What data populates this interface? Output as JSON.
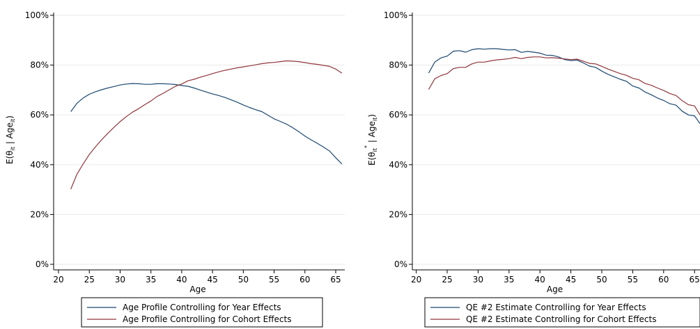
{
  "chart_data": [
    {
      "type": "line",
      "xlabel": "Age",
      "ylabel_main": "E(θ",
      "ylabel_sub1": "it",
      "ylabel_sup": "",
      "ylabel_mid": " | Age",
      "ylabel_sub2": "it",
      "ylabel_end": ")",
      "xlim": [
        20,
        66
      ],
      "ylim": [
        0,
        1
      ],
      "xticks": [
        "20",
        "25",
        "30",
        "35",
        "40",
        "45",
        "50",
        "55",
        "60",
        "65"
      ],
      "yticks": [
        "0%",
        "20%",
        "40%",
        "60%",
        "80%",
        "100%"
      ],
      "grid": true,
      "legend_position": "bottom",
      "series": [
        {
          "name": "Age Profile Controlling for Year Effects",
          "color": "#1a476f",
          "x": [
            22,
            23,
            24,
            25,
            26,
            27,
            28,
            29,
            30,
            31,
            32,
            33,
            34,
            35,
            36,
            37,
            38,
            39,
            40,
            41,
            42,
            43,
            44,
            45,
            46,
            47,
            48,
            49,
            50,
            51,
            52,
            53,
            54,
            55,
            56,
            57,
            58,
            59,
            60,
            61,
            62,
            63,
            64,
            65,
            66
          ],
          "y": [
            0.613,
            0.647,
            0.668,
            0.683,
            0.693,
            0.701,
            0.708,
            0.714,
            0.72,
            0.724,
            0.726,
            0.725,
            0.723,
            0.723,
            0.725,
            0.725,
            0.724,
            0.722,
            0.718,
            0.715,
            0.708,
            0.7,
            0.692,
            0.684,
            0.678,
            0.67,
            0.661,
            0.651,
            0.64,
            0.63,
            0.621,
            0.613,
            0.599,
            0.584,
            0.574,
            0.563,
            0.549,
            0.533,
            0.515,
            0.5,
            0.486,
            0.471,
            0.455,
            0.428,
            0.403
          ]
        },
        {
          "name": "Age Profile Controlling for Cohort Effects",
          "color": "#90353b",
          "x": [
            22,
            23,
            24,
            25,
            26,
            27,
            28,
            29,
            30,
            31,
            32,
            33,
            34,
            35,
            36,
            37,
            38,
            39,
            40,
            41,
            42,
            43,
            44,
            45,
            46,
            47,
            48,
            49,
            50,
            51,
            52,
            53,
            54,
            55,
            56,
            57,
            58,
            59,
            60,
            61,
            62,
            63,
            64,
            65,
            66
          ],
          "y": [
            0.302,
            0.362,
            0.403,
            0.441,
            0.472,
            0.5,
            0.526,
            0.55,
            0.573,
            0.593,
            0.611,
            0.625,
            0.641,
            0.656,
            0.674,
            0.687,
            0.701,
            0.715,
            0.724,
            0.737,
            0.743,
            0.751,
            0.758,
            0.766,
            0.773,
            0.779,
            0.784,
            0.789,
            0.793,
            0.797,
            0.801,
            0.806,
            0.809,
            0.811,
            0.814,
            0.817,
            0.816,
            0.814,
            0.81,
            0.806,
            0.803,
            0.799,
            0.795,
            0.784,
            0.768
          ]
        }
      ]
    },
    {
      "type": "line",
      "xlabel": "Age",
      "ylabel_main": "E(θ",
      "ylabel_sub1": "it",
      "ylabel_sup": "*",
      "ylabel_mid": " | Age",
      "ylabel_sub2": "it",
      "ylabel_end": ")",
      "xlim": [
        20,
        66
      ],
      "ylim": [
        0,
        1
      ],
      "xticks": [
        "20",
        "25",
        "30",
        "35",
        "40",
        "45",
        "50",
        "55",
        "60",
        "65"
      ],
      "yticks": [
        "0%",
        "20%",
        "40%",
        "60%",
        "80%",
        "100%"
      ],
      "grid": true,
      "legend_position": "bottom",
      "series": [
        {
          "name": "QE #2 Estimate Controlling for Year Effects",
          "color": "#1a476f",
          "x": [
            22,
            23,
            24,
            25,
            26,
            27,
            28,
            29,
            30,
            31,
            32,
            33,
            34,
            35,
            36,
            37,
            38,
            39,
            40,
            41,
            42,
            43,
            44,
            45,
            46,
            47,
            48,
            49,
            50,
            51,
            52,
            53,
            54,
            55,
            56,
            57,
            58,
            59,
            60,
            61,
            62,
            63,
            64,
            65,
            66
          ],
          "y": [
            0.768,
            0.812,
            0.829,
            0.836,
            0.856,
            0.858,
            0.852,
            0.862,
            0.866,
            0.864,
            0.866,
            0.866,
            0.863,
            0.861,
            0.862,
            0.851,
            0.855,
            0.852,
            0.848,
            0.84,
            0.839,
            0.833,
            0.822,
            0.818,
            0.82,
            0.809,
            0.796,
            0.791,
            0.776,
            0.763,
            0.753,
            0.743,
            0.735,
            0.716,
            0.708,
            0.692,
            0.681,
            0.668,
            0.658,
            0.645,
            0.639,
            0.615,
            0.6,
            0.596,
            0.565
          ]
        },
        {
          "name": "QE #2 Estimate Controlling for Cohort Effects",
          "color": "#90353b",
          "x": [
            22,
            23,
            24,
            25,
            26,
            27,
            28,
            29,
            30,
            31,
            32,
            33,
            34,
            35,
            36,
            37,
            38,
            39,
            40,
            41,
            42,
            43,
            44,
            45,
            46,
            47,
            48,
            49,
            50,
            51,
            52,
            53,
            54,
            55,
            56,
            57,
            58,
            59,
            60,
            61,
            62,
            63,
            64,
            65,
            66
          ],
          "y": [
            0.702,
            0.745,
            0.758,
            0.766,
            0.786,
            0.791,
            0.791,
            0.805,
            0.812,
            0.812,
            0.817,
            0.821,
            0.823,
            0.826,
            0.831,
            0.826,
            0.831,
            0.833,
            0.833,
            0.829,
            0.83,
            0.828,
            0.825,
            0.822,
            0.824,
            0.816,
            0.807,
            0.805,
            0.795,
            0.784,
            0.775,
            0.766,
            0.759,
            0.747,
            0.741,
            0.726,
            0.719,
            0.708,
            0.698,
            0.686,
            0.678,
            0.657,
            0.641,
            0.636,
            0.6
          ]
        }
      ]
    }
  ]
}
